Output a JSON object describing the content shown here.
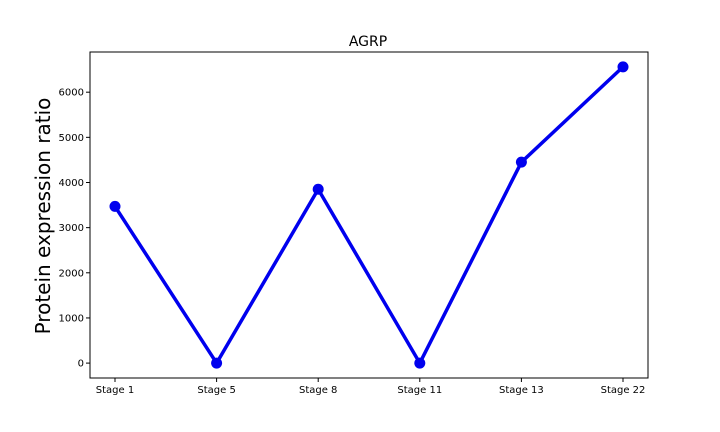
{
  "chart_data": {
    "type": "line",
    "title": "AGRP",
    "xlabel": "",
    "ylabel": "Protein expression ratio",
    "categories": [
      "Stage 1",
      "Stage 5",
      "Stage 8",
      "Stage 11",
      "Stage 13",
      "Stage 22"
    ],
    "series": [
      {
        "values": [
          3470,
          0,
          3850,
          0,
          4450,
          6560
        ]
      }
    ],
    "ylim": [
      -330,
      6890
    ],
    "yticks": [
      0,
      1000,
      2000,
      3000,
      4000,
      5000,
      6000
    ],
    "ytick_labels": [
      "0",
      "1000",
      "2000",
      "3000",
      "4000",
      "5000",
      "6000"
    ],
    "grid": false,
    "line_color": "#0000ee",
    "marker": "circle"
  }
}
